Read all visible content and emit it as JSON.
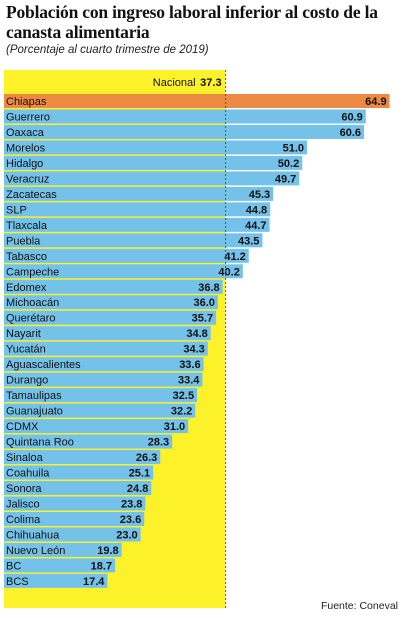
{
  "title": "Población con ingreso laboral inferior al costo de la canasta alimentaria",
  "subtitle": "(Porcentaje al cuarto trimestre de 2019)",
  "source": "Fuente: Coneval",
  "colors": {
    "bar": "#74c2ea",
    "highlight": "#ec8a44",
    "reference_band": "#fdf22a",
    "reference_line": "#555555"
  },
  "chart_data": {
    "type": "bar",
    "orientation": "horizontal",
    "reference": {
      "label": "Nacional",
      "value": 37.3
    },
    "categories": [
      "Chiapas",
      "Guerrero",
      "Oaxaca",
      "Morelos",
      "Hidalgo",
      "Veracruz",
      "Zacatecas",
      "SLP",
      "Tlaxcala",
      "Puebla",
      "Tabasco",
      "Campeche",
      "Edomex",
      "Michoacán",
      "Querétaro",
      "Nayarit",
      "Yucatán",
      "Aguascalientes",
      "Durango",
      "Tamaulipas",
      "Guanajuato",
      "CDMX",
      "Quintana Roo",
      "Sinaloa",
      "Coahuila",
      "Sonora",
      "Jalisco",
      "Colima",
      "Chihuahua",
      "Nuevo León",
      "BC",
      "BCS"
    ],
    "values": [
      64.9,
      60.9,
      60.6,
      51.0,
      50.2,
      49.7,
      45.3,
      44.8,
      44.7,
      43.5,
      41.2,
      40.2,
      36.8,
      36.0,
      35.7,
      34.8,
      34.3,
      33.6,
      33.4,
      32.5,
      32.2,
      31.0,
      28.3,
      26.3,
      25.1,
      24.8,
      23.8,
      23.6,
      23.0,
      19.8,
      18.7,
      17.4
    ],
    "value_labels": [
      "64.9",
      "60.9",
      "60.6",
      "51.0",
      "50.2",
      "49.7",
      "45.3",
      "44.8",
      "44.7",
      "43.5",
      "41.2",
      "40.2",
      "36.8",
      "36.0",
      "35.7",
      "34.8",
      "34.3",
      "33.6",
      "33.4",
      "32.5",
      "32.2",
      "31.0",
      "28.3",
      "26.3",
      "25.1",
      "24.8",
      "23.8",
      "23.6",
      "23.0",
      "19.8",
      "18.7",
      "17.4"
    ],
    "highlight": "Chiapas",
    "xlim": [
      0,
      68
    ]
  }
}
